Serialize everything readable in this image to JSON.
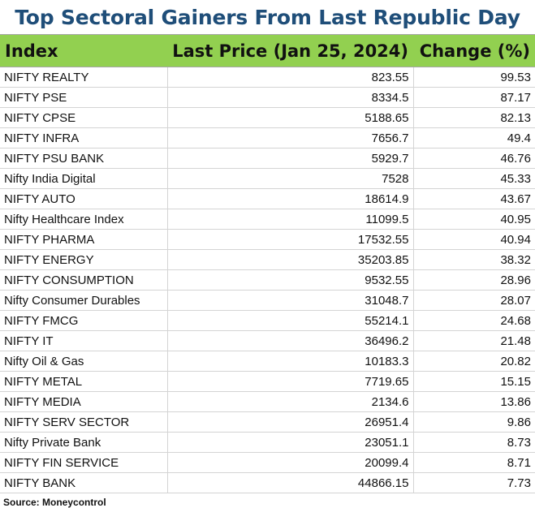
{
  "chart_data": {
    "type": "table",
    "title": "Top Sectoral Gainers From Last Republic Day",
    "columns": [
      "Index",
      "Last Price (Jan 25, 2024)",
      "Change (%)"
    ],
    "rows": [
      [
        "NIFTY REALTY",
        "823.55",
        "99.53"
      ],
      [
        "NIFTY PSE",
        "8334.5",
        "87.17"
      ],
      [
        "NIFTY CPSE",
        "5188.65",
        "82.13"
      ],
      [
        "NIFTY INFRA",
        "7656.7",
        "49.4"
      ],
      [
        "NIFTY PSU BANK",
        "5929.7",
        "46.76"
      ],
      [
        "Nifty India Digital",
        "7528",
        "45.33"
      ],
      [
        "NIFTY AUTO",
        "18614.9",
        "43.67"
      ],
      [
        "Nifty Healthcare Index",
        "11099.5",
        "40.95"
      ],
      [
        "NIFTY PHARMA",
        "17532.55",
        "40.94"
      ],
      [
        "NIFTY ENERGY",
        "35203.85",
        "38.32"
      ],
      [
        "NIFTY CONSUMPTION",
        "9532.55",
        "28.96"
      ],
      [
        "Nifty Consumer Durables",
        "31048.7",
        "28.07"
      ],
      [
        "NIFTY FMCG",
        "55214.1",
        "24.68"
      ],
      [
        "NIFTY IT",
        "36496.2",
        "21.48"
      ],
      [
        "Nifty Oil & Gas",
        "10183.3",
        "20.82"
      ],
      [
        "NIFTY METAL",
        "7719.65",
        "15.15"
      ],
      [
        "NIFTY MEDIA",
        "2134.6",
        "13.86"
      ],
      [
        "NIFTY SERV SECTOR",
        "26951.4",
        "9.86"
      ],
      [
        "Nifty Private Bank",
        "23051.1",
        "8.73"
      ],
      [
        "NIFTY FIN SERVICE",
        "20099.4",
        "8.71"
      ],
      [
        "NIFTY BANK",
        "44866.15",
        "7.73"
      ]
    ],
    "source": "Source: Moneycontrol"
  },
  "colors": {
    "title": "#1f4e79",
    "header_bg": "#92d050",
    "grid": "#d4d4d4"
  }
}
